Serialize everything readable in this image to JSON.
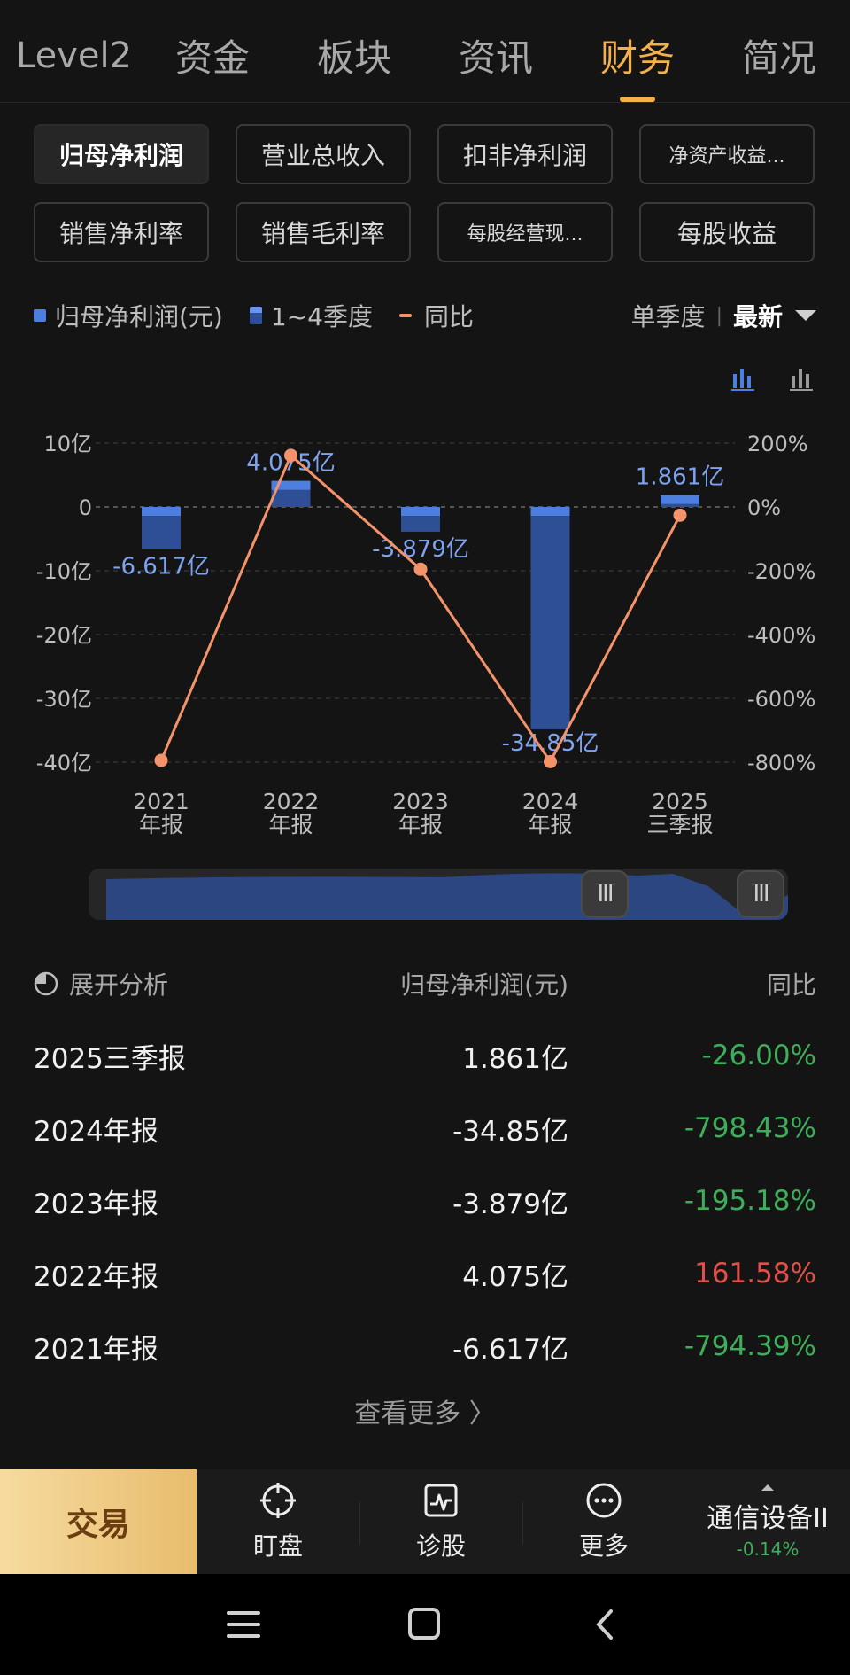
{
  "tabs": [
    "Level2",
    "资金",
    "板块",
    "资讯",
    "财务",
    "简况"
  ],
  "active_tab": 4,
  "metrics": [
    {
      "label": "归母净利润",
      "active": true
    },
    {
      "label": "营业总收入",
      "active": false
    },
    {
      "label": "扣非净利润",
      "active": false
    },
    {
      "label": "净资产收益...",
      "active": false,
      "small": true
    },
    {
      "label": "销售净利率",
      "active": false
    },
    {
      "label": "销售毛利率",
      "active": false
    },
    {
      "label": "每股经营现...",
      "active": false,
      "small": true
    },
    {
      "label": "每股收益",
      "active": false
    }
  ],
  "legend": {
    "profit": "归母净利润(元)",
    "quarters": "1~4季度",
    "yoy": "同比"
  },
  "period": {
    "mode": "单季度",
    "sep": "|",
    "latest": "最新"
  },
  "colors": {
    "accent": "#f4b04a",
    "bar": "#2e4f96",
    "bar_top": "#4d7fe0",
    "line": "#f4936a",
    "label": "#7ea3f0",
    "green": "#3fae5a",
    "red": "#e0504a"
  },
  "chart_data": {
    "type": "bar",
    "categories": [
      "2021\n年报",
      "2022\n年报",
      "2023\n年报",
      "2024\n年报",
      "2025\n三季报"
    ],
    "series": [
      {
        "name": "归母净利润(元)",
        "type": "bar",
        "values": [
          -6.617,
          4.075,
          -3.879,
          -34.85,
          1.861
        ],
        "unit": "亿"
      },
      {
        "name": "同比",
        "type": "line",
        "axis": "right",
        "values": [
          -794.39,
          161.58,
          -195.18,
          -798.43,
          -26.0
        ],
        "unit": "%"
      }
    ],
    "data_labels": [
      "-6.617亿",
      "4.075亿",
      "-3.879亿",
      "-34.85亿",
      "1.861亿"
    ],
    "y_left": {
      "ticks": [
        "10亿",
        "0",
        "-10亿",
        "-20亿",
        "-30亿",
        "-40亿"
      ],
      "ylim": [
        -40,
        10
      ]
    },
    "y_right": {
      "ticks": [
        "200%",
        "0%",
        "-200%",
        "-400%",
        "-600%",
        "-800%"
      ],
      "ylim": [
        -800,
        200
      ]
    },
    "grid": true
  },
  "table": {
    "header": {
      "analysis": "展开分析",
      "metric": "归母净利润(元)",
      "yoy": "同比"
    },
    "rows": [
      {
        "period": "2025三季报",
        "value": "1.861亿",
        "yoy": "-26.00%",
        "dir": "down"
      },
      {
        "period": "2024年报",
        "value": "-34.85亿",
        "yoy": "-798.43%",
        "dir": "down"
      },
      {
        "period": "2023年报",
        "value": "-3.879亿",
        "yoy": "-195.18%",
        "dir": "down"
      },
      {
        "period": "2022年报",
        "value": "4.075亿",
        "yoy": "161.58%",
        "dir": "up"
      },
      {
        "period": "2021年报",
        "value": "-6.617亿",
        "yoy": "-794.39%",
        "dir": "down"
      }
    ],
    "more": "查看更多 〉"
  },
  "bottom_nav": {
    "trade": "交易",
    "items": [
      {
        "label": "盯盘",
        "icon": "crosshair-icon"
      },
      {
        "label": "诊股",
        "icon": "pulse-chart-icon"
      },
      {
        "label": "更多",
        "icon": "more-dots-icon"
      }
    ],
    "sector": {
      "name": "通信设备II",
      "change": "-0.14%"
    }
  },
  "slider": {
    "handle_glyph": "III"
  }
}
